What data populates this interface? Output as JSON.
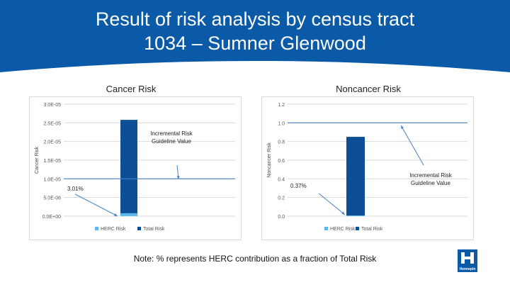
{
  "slide": {
    "title_line1": "Result of risk analysis by census tract",
    "title_line2": "1034 – Sumner Glenwood",
    "note": "Note: % represents HERC contribution as a fraction of Total Risk",
    "logo_text": "Hennepin",
    "colors": {
      "banner": "#0a5aa8",
      "herc": "#5bb8e8",
      "total": "#0d4f94",
      "guideline": "#4a7fc4"
    }
  },
  "chart_data": [
    {
      "type": "bar",
      "title": "Cancer Risk",
      "ylabel": "Cancer Risk",
      "ylim": [
        0,
        3e-05
      ],
      "yticks": [
        0,
        5e-06,
        1e-05,
        1.5e-05,
        2e-05,
        2.5e-05,
        3e-05
      ],
      "ytick_labels": [
        "0.0E+00",
        "5.0E-06",
        "1.0E-05",
        "1.5E-05",
        "2.0E-05",
        "2.5E-05",
        "3.0E-05"
      ],
      "series": [
        {
          "name": "HERC Risk",
          "values": [
            7.8e-07
          ]
        },
        {
          "name": "Total Risk",
          "values": [
            2.58e-05
          ]
        }
      ],
      "guideline": {
        "value": 1e-05,
        "label_lines": [
          "Incremental Risk",
          "Guideline Value"
        ]
      },
      "percent_label": "3.01%",
      "legend": "bottom",
      "grid": true
    },
    {
      "type": "bar",
      "title": "Noncancer Risk",
      "ylabel": "Noncancer Risk",
      "ylim": [
        0,
        1.2
      ],
      "yticks": [
        0,
        0.2,
        0.4,
        0.6,
        0.8,
        1.0,
        1.2
      ],
      "ytick_labels": [
        "0.0",
        "0.2",
        "0.4",
        "0.6",
        "0.8",
        "1.0",
        "1.2"
      ],
      "series": [
        {
          "name": "HERC Risk",
          "values": [
            0.0031
          ]
        },
        {
          "name": "Total Risk",
          "values": [
            0.85
          ]
        }
      ],
      "guideline": {
        "value": 1.0,
        "label_lines": [
          "Incremental Risk",
          "Guideline Value"
        ]
      },
      "percent_label": "0.37%",
      "legend": "bottom",
      "grid": true
    }
  ]
}
